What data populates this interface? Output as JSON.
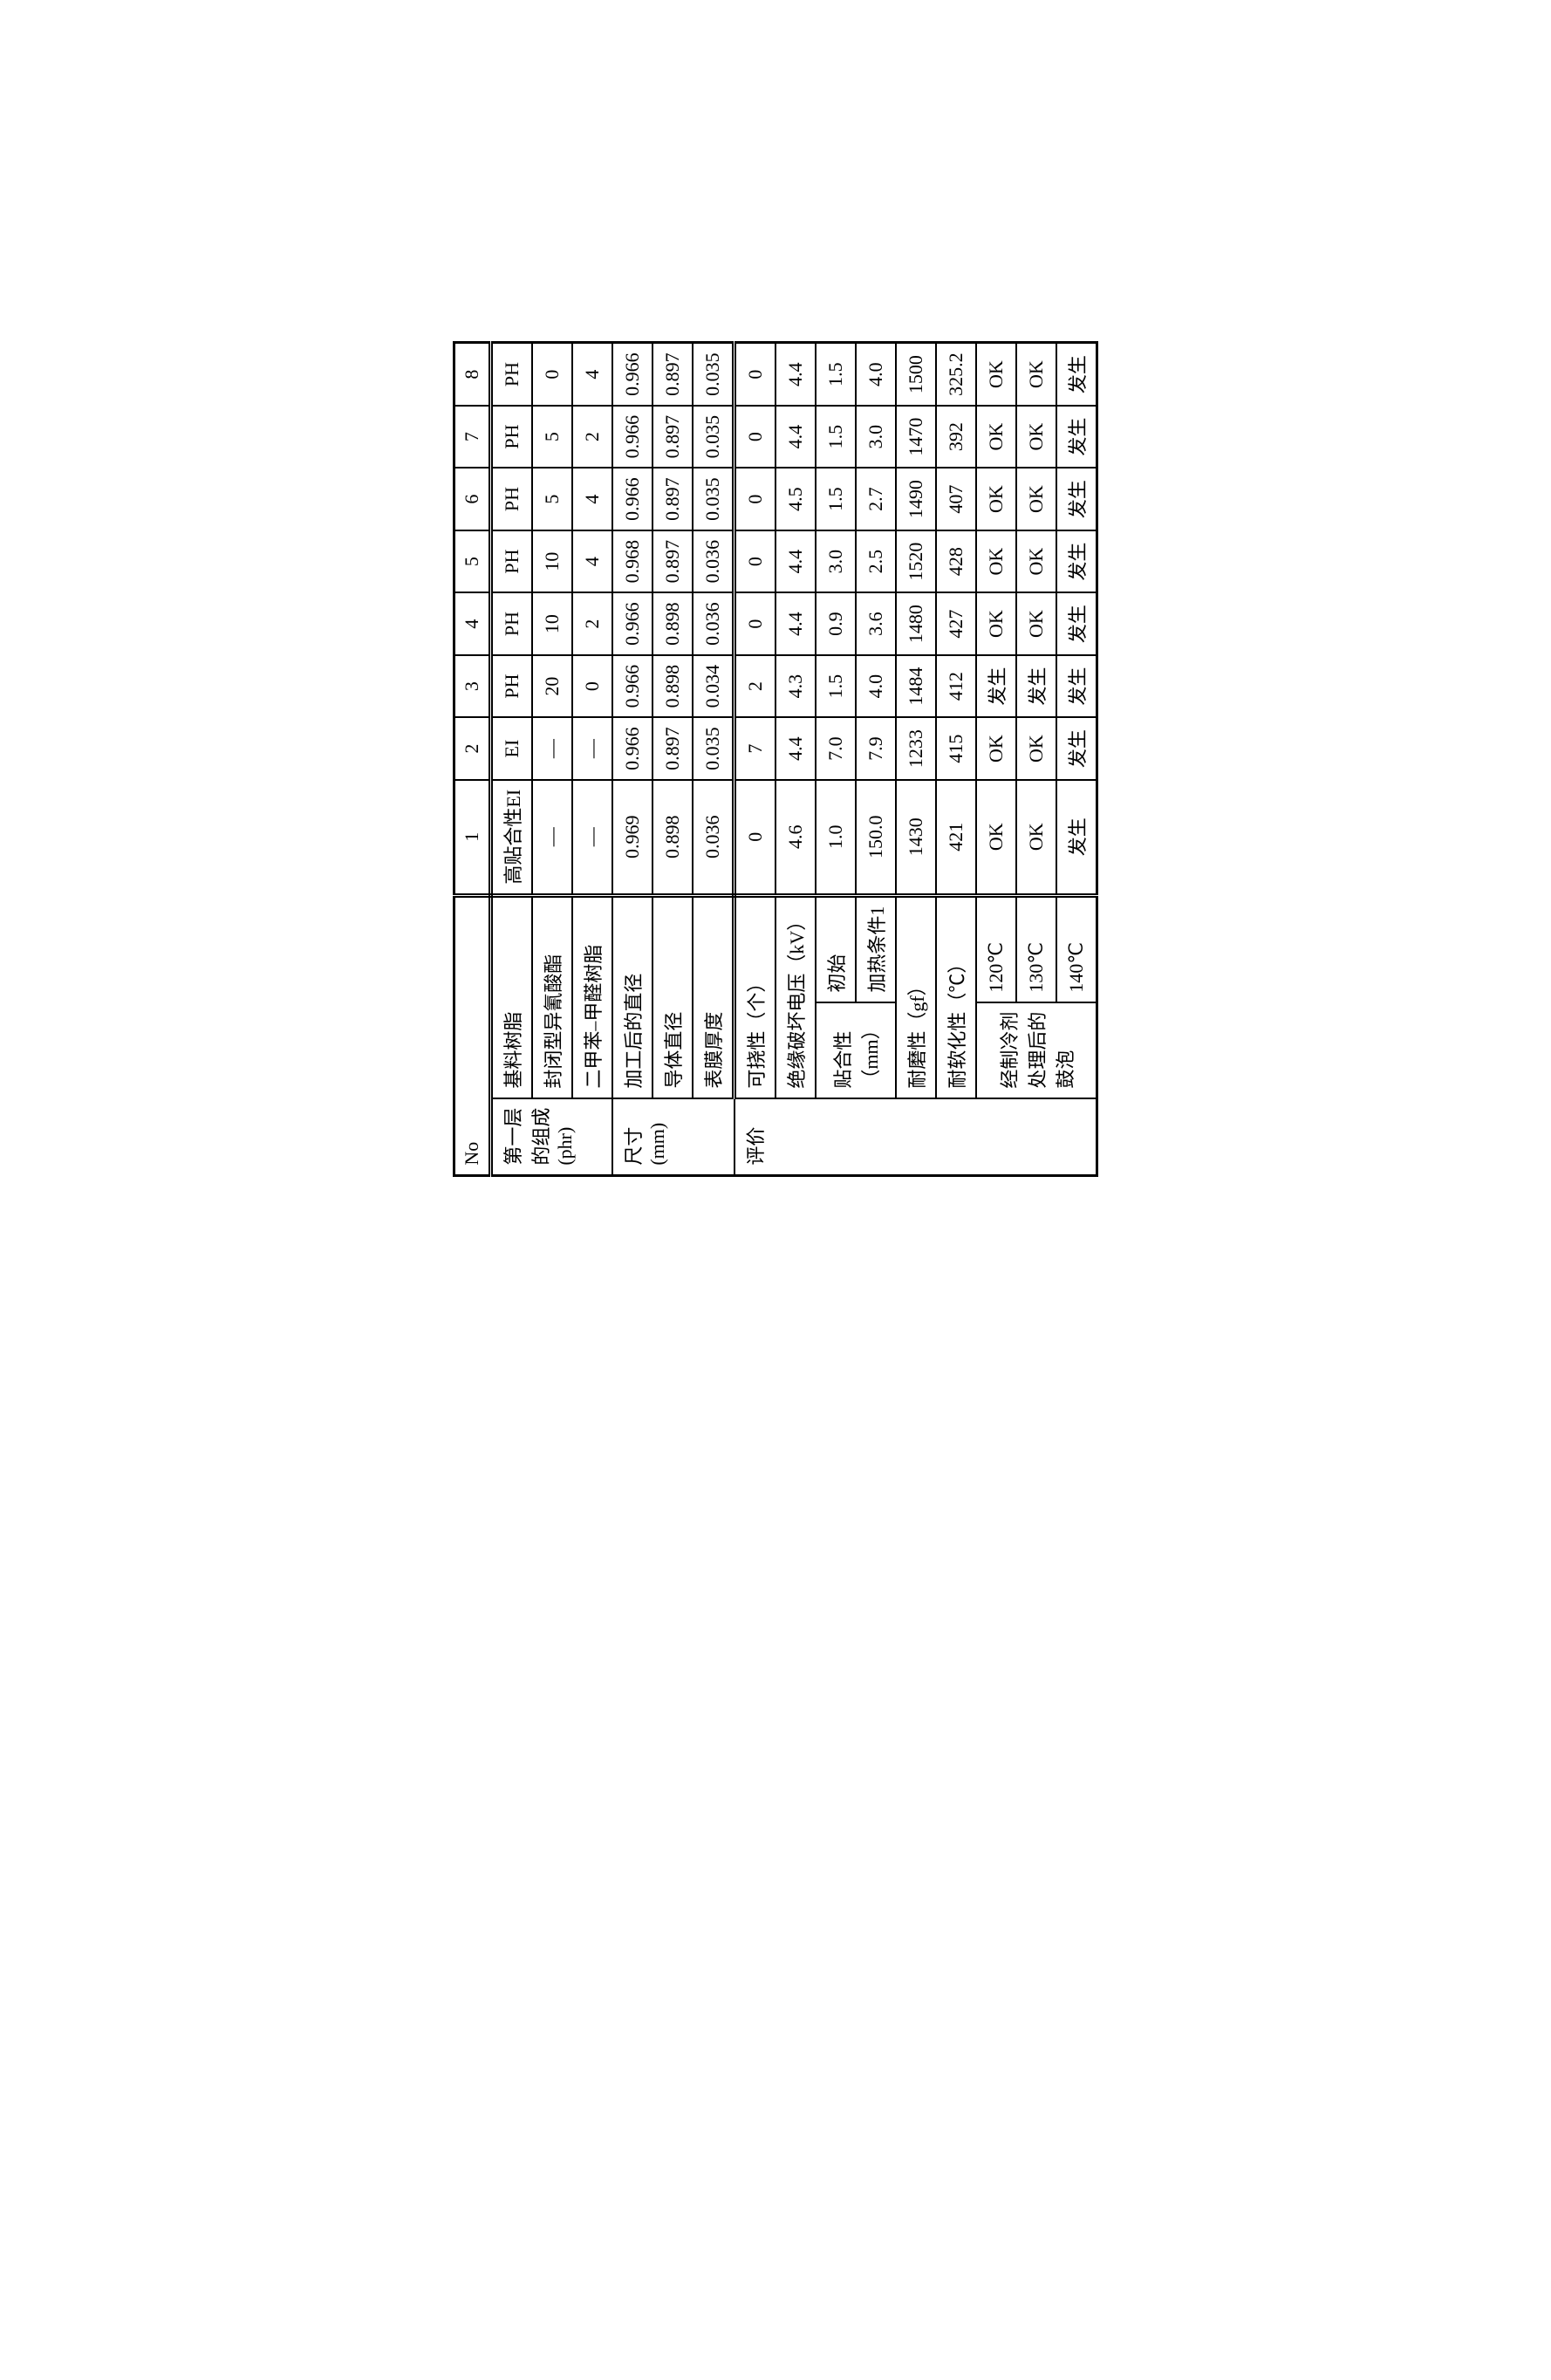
{
  "header": {
    "no": "No",
    "cols": [
      "1",
      "2",
      "3",
      "4",
      "5",
      "6",
      "7",
      "8"
    ]
  },
  "sections": {
    "comp": {
      "label1": "第一层",
      "label2": "的组成",
      "label3": "(phr)",
      "base": "基料树脂",
      "iso": "封闭型异氰酸酯",
      "xy": "二甲苯–甲醛树脂"
    },
    "dim": {
      "label1": "尺寸",
      "label2": "(mm)",
      "postdia": "加工后的直径",
      "conddia": "导体直径",
      "film": "表膜厚度"
    },
    "eval": {
      "label": "评价",
      "flex": "可挠性（个）",
      "bdv": "绝缘破坏电压（kV）",
      "adh": "贴合性",
      "adh_init": "初始",
      "adh_heat": "加热条件1",
      "adh_unit": "（mm）",
      "abr": "耐磨性（gf）",
      "soft": "耐软化性（℃）",
      "cool1": "经制冷剂",
      "cool2": "处理后的",
      "cool3": "鼓泡",
      "t120": "120℃",
      "t130": "130℃",
      "t140": "140℃"
    }
  },
  "rows": {
    "base": [
      "高贴合性EI",
      "EI",
      "PH",
      "PH",
      "PH",
      "PH",
      "PH",
      "PH"
    ],
    "iso": [
      "—",
      "—",
      "20",
      "10",
      "10",
      "5",
      "5",
      "0"
    ],
    "xy": [
      "—",
      "—",
      "0",
      "2",
      "4",
      "4",
      "2",
      "4"
    ],
    "postdia": [
      "0.969",
      "0.966",
      "0.966",
      "0.966",
      "0.968",
      "0.966",
      "0.966",
      "0.966"
    ],
    "conddia": [
      "0.898",
      "0.897",
      "0.898",
      "0.898",
      "0.897",
      "0.897",
      "0.897",
      "0.897"
    ],
    "film": [
      "0.036",
      "0.035",
      "0.034",
      "0.036",
      "0.036",
      "0.035",
      "0.035",
      "0.035"
    ],
    "flex": [
      "0",
      "7",
      "2",
      "0",
      "0",
      "0",
      "0",
      "0"
    ],
    "bdv": [
      "4.6",
      "4.4",
      "4.3",
      "4.4",
      "4.4",
      "4.5",
      "4.4",
      "4.4"
    ],
    "adh_init": [
      "1.0",
      "7.0",
      "1.5",
      "0.9",
      "3.0",
      "1.5",
      "1.5",
      "1.5"
    ],
    "adh_heat": [
      "150.0",
      "7.9",
      "4.0",
      "3.6",
      "2.5",
      "2.7",
      "3.0",
      "4.0"
    ],
    "abr": [
      "1430",
      "1233",
      "1484",
      "1480",
      "1520",
      "1490",
      "1470",
      "1500"
    ],
    "soft": [
      "421",
      "415",
      "412",
      "427",
      "428",
      "407",
      "392",
      "325.2"
    ],
    "t120": [
      "OK",
      "OK",
      "发生",
      "OK",
      "OK",
      "OK",
      "OK",
      "OK"
    ],
    "t130": [
      "OK",
      "OK",
      "发生",
      "OK",
      "OK",
      "OK",
      "OK",
      "OK"
    ],
    "t140": [
      "发生",
      "发生",
      "发生",
      "发生",
      "发生",
      "发生",
      "发生",
      "发生"
    ]
  }
}
